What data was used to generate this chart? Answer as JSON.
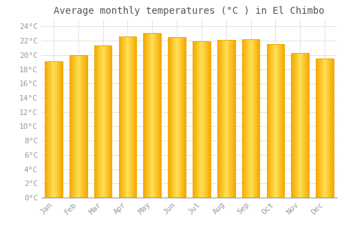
{
  "title": "Average monthly temperatures (°C ) in El Chimbo",
  "months": [
    "Jan",
    "Feb",
    "Mar",
    "Apr",
    "May",
    "Jun",
    "Jul",
    "Aug",
    "Sep",
    "Oct",
    "Nov",
    "Dec"
  ],
  "values": [
    19.1,
    20.0,
    21.3,
    22.6,
    23.1,
    22.5,
    21.9,
    22.1,
    22.2,
    21.5,
    20.3,
    19.5
  ],
  "bar_color_center": "#FFD055",
  "bar_color_edge": "#F5A800",
  "ylim": [
    0,
    25
  ],
  "ytick_step": 2,
  "background_color": "#ffffff",
  "grid_color": "#dddddd",
  "title_fontsize": 10,
  "tick_fontsize": 8,
  "font_family": "monospace",
  "tick_color": "#999999",
  "title_color": "#555555"
}
